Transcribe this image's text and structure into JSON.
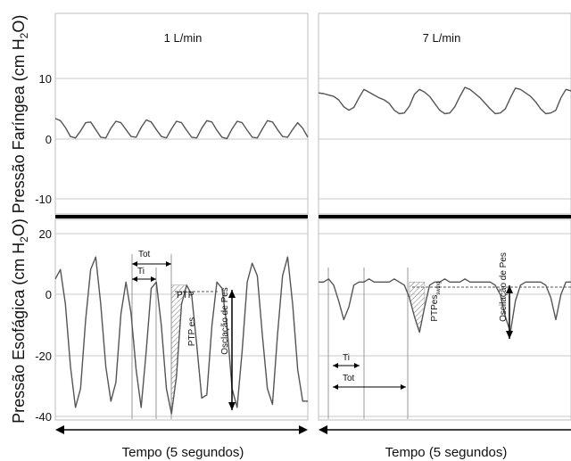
{
  "chart_data": [
    {
      "type": "line",
      "panel": "top-left",
      "title": "1 L/min",
      "ylabel": "Pressão Faríngea (cm H2O)",
      "ylim": [
        -12,
        17
      ],
      "yticks": [
        "10",
        "0",
        "-10"
      ],
      "x": [
        0,
        0.1,
        0.2,
        0.3,
        0.4,
        0.5,
        0.6,
        0.7,
        0.8,
        0.9,
        1.0,
        1.1,
        1.2,
        1.3,
        1.4,
        1.5,
        1.6,
        1.7,
        1.8,
        1.9,
        2.0,
        2.1,
        2.2,
        2.3,
        2.4,
        2.5,
        2.6,
        2.7,
        2.8,
        2.9,
        3.0,
        3.1,
        3.2,
        3.3,
        3.4,
        3.5,
        3.6,
        3.7,
        3.8,
        3.9,
        4.0,
        4.1,
        4.2,
        4.3,
        4.4,
        4.5,
        4.6,
        4.7,
        4.8,
        4.9,
        5.0
      ],
      "values": [
        1.8,
        1.5,
        0.5,
        -0.8,
        -1.0,
        0.0,
        1.2,
        1.3,
        0.2,
        -0.9,
        -1.0,
        0.4,
        1.4,
        1.2,
        0.2,
        -0.8,
        -0.9,
        0.5,
        1.6,
        1.3,
        0.2,
        -0.8,
        -1.0,
        0.3,
        1.4,
        1.2,
        0.1,
        -0.9,
        -1.0,
        0.4,
        1.5,
        1.3,
        0.1,
        -0.9,
        -1.1,
        0.3,
        1.4,
        1.2,
        0.1,
        -0.9,
        -1.0,
        0.3,
        1.5,
        1.3,
        0.2,
        -0.8,
        -0.9,
        0.2,
        1.2,
        0.4,
        -0.9
      ]
    },
    {
      "type": "line",
      "panel": "top-right",
      "title": "7 L/min",
      "ylim": [
        -12,
        17
      ],
      "x": [
        0,
        0.1,
        0.2,
        0.3,
        0.4,
        0.5,
        0.6,
        0.7,
        0.8,
        0.9,
        1.0,
        1.1,
        1.2,
        1.3,
        1.4,
        1.5,
        1.6,
        1.7,
        1.8,
        1.9,
        2.0,
        2.1,
        2.2,
        2.3,
        2.4,
        2.5,
        2.6,
        2.7,
        2.8,
        2.9,
        3.0,
        3.1,
        3.2,
        3.3,
        3.4,
        3.5,
        3.6,
        3.7,
        3.8,
        3.9,
        4.0,
        4.1,
        4.2,
        4.3,
        4.4,
        4.5,
        4.6,
        4.7,
        4.8,
        4.9,
        5.0
      ],
      "values": [
        5.5,
        5.4,
        5.2,
        5.0,
        4.5,
        3.5,
        3.0,
        3.4,
        4.8,
        6.0,
        5.6,
        5.2,
        4.8,
        4.5,
        4.0,
        3.0,
        2.5,
        2.6,
        3.6,
        5.3,
        6.0,
        5.6,
        5.0,
        4.0,
        3.0,
        2.5,
        2.6,
        3.5,
        5.0,
        6.3,
        6.0,
        5.4,
        4.8,
        4.0,
        3.2,
        2.5,
        2.6,
        3.2,
        4.8,
        6.2,
        6.0,
        5.5,
        5.0,
        4.2,
        3.2,
        2.5,
        2.6,
        3.0,
        4.8,
        6.0,
        5.8
      ]
    },
    {
      "type": "line",
      "panel": "bottom-left",
      "ylabel": "Pressão Esofágica (cm H2O)",
      "xlabel": "Tempo (5 segundos)",
      "ylim": [
        -42,
        22
      ],
      "yticks": [
        "20",
        "0",
        "-20",
        "-40"
      ],
      "x": [
        0,
        0.1,
        0.2,
        0.3,
        0.4,
        0.5,
        0.6,
        0.7,
        0.8,
        0.9,
        1.0,
        1.1,
        1.2,
        1.3,
        1.4,
        1.5,
        1.6,
        1.7,
        1.8,
        1.9,
        2.0,
        2.1,
        2.2,
        2.3,
        2.4,
        2.5,
        2.6,
        2.7,
        2.8,
        2.9,
        3.0,
        3.1,
        3.2,
        3.3,
        3.4,
        3.5,
        3.6,
        3.7,
        3.8,
        3.9,
        4.0,
        4.1,
        4.2,
        4.3,
        4.4,
        4.5,
        4.6,
        4.7,
        4.8,
        4.9,
        5.0
      ],
      "values": [
        3,
        6,
        -5,
        -25,
        -38,
        -32,
        -10,
        6,
        10,
        -5,
        -25,
        -36,
        -30,
        -8,
        2,
        -8,
        -26,
        -38,
        -20,
        0,
        2,
        -12,
        -32,
        -40,
        -28,
        -5,
        1,
        -2,
        -18,
        -35,
        -34,
        -12,
        2,
        0,
        -12,
        -32,
        -38,
        -20,
        2,
        8,
        4,
        -15,
        -32,
        -37,
        -15,
        4,
        10,
        -5,
        -26,
        -36,
        -36
      ],
      "annotations": {
        "tot": "Tot",
        "ti": "Ti",
        "ptp": "PTP",
        "ptpes": "PTP es",
        "oscillation": "Osclação de Pes"
      }
    },
    {
      "type": "line",
      "panel": "bottom-right",
      "xlabel": "Tempo (5 segundos)",
      "ylim": [
        -42,
        22
      ],
      "x": [
        0,
        0.1,
        0.2,
        0.3,
        0.4,
        0.5,
        0.6,
        0.7,
        0.8,
        0.9,
        1.0,
        1.1,
        1.2,
        1.3,
        1.4,
        1.5,
        1.6,
        1.7,
        1.8,
        1.9,
        2.0,
        2.1,
        2.2,
        2.3,
        2.4,
        2.5,
        2.6,
        2.7,
        2.8,
        2.9,
        3.0,
        3.1,
        3.2,
        3.3,
        3.4,
        3.5,
        3.6,
        3.7,
        3.8,
        3.9,
        4.0,
        4.1,
        4.2,
        4.3,
        4.4,
        4.5,
        4.6,
        4.7,
        4.8,
        4.9,
        5.0
      ],
      "values": [
        2,
        2,
        3,
        1,
        -4,
        -10,
        -6,
        1,
        2,
        2,
        3,
        2,
        2,
        2,
        2,
        3,
        2,
        1,
        -3,
        -9,
        -14,
        -6,
        1,
        2,
        2,
        3,
        2,
        2,
        2,
        3,
        2,
        2,
        2,
        2,
        2,
        1,
        -2,
        -9,
        -14,
        -4,
        1,
        2,
        2,
        2,
        2,
        1,
        -3,
        -10,
        -2,
        2,
        2
      ],
      "annotations": {
        "ti": "Ti",
        "tot": "Tot",
        "ptpes_swing": "PTPes",
        "ptpes_swing_sub": "swing",
        "oscillation": "Oscilação de Pes"
      }
    }
  ]
}
